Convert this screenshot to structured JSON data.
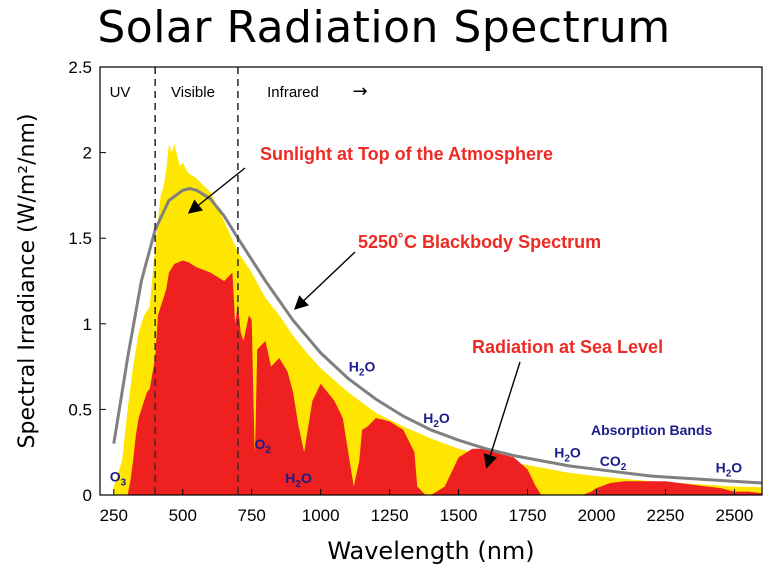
{
  "chart_data": {
    "type": "area",
    "title": "Solar Radiation Spectrum",
    "xlabel": "Wavelength (nm)",
    "ylabel": "Spectral Irradiance (W/m²/nm)",
    "xlim": [
      200,
      2600
    ],
    "ylim": [
      0,
      2.5
    ],
    "x_ticks": [
      250,
      500,
      750,
      1000,
      1250,
      1500,
      1750,
      2000,
      2250,
      2500
    ],
    "y_ticks": [
      0,
      0.5,
      1,
      1.5,
      2,
      2.5
    ],
    "y_tick_labels": [
      "0",
      "0.5",
      "1",
      "1.5",
      "2",
      "2.5"
    ],
    "grid": false,
    "regions": [
      {
        "label": "UV",
        "x_end": 400
      },
      {
        "label": "Visible",
        "x_end": 700
      },
      {
        "label": "Infrared",
        "arrow": "→"
      }
    ],
    "series": [
      {
        "name": "Sunlight at Top of the Atmosphere",
        "color": "#ffe600",
        "x": [
          250,
          280,
          300,
          320,
          340,
          360,
          380,
          400,
          410,
          420,
          430,
          440,
          450,
          460,
          470,
          480,
          490,
          500,
          520,
          550,
          580,
          600,
          650,
          700,
          750,
          800,
          850,
          900,
          950,
          1000,
          1100,
          1200,
          1300,
          1400,
          1500,
          1600,
          1700,
          1800,
          1900,
          2000,
          2100,
          2200,
          2300,
          2400,
          2500,
          2600
        ],
        "y": [
          0.05,
          0.2,
          0.5,
          0.75,
          0.95,
          1.05,
          1.1,
          1.45,
          1.6,
          1.75,
          1.8,
          1.9,
          2.05,
          2.0,
          2.05,
          1.98,
          1.92,
          1.94,
          1.88,
          1.85,
          1.8,
          1.77,
          1.6,
          1.42,
          1.3,
          1.15,
          1.05,
          0.93,
          0.83,
          0.74,
          0.6,
          0.48,
          0.4,
          0.33,
          0.27,
          0.23,
          0.19,
          0.16,
          0.13,
          0.11,
          0.095,
          0.08,
          0.07,
          0.06,
          0.05,
          0.045
        ]
      },
      {
        "name": "5250°C Blackbody Spectrum",
        "color": "#808080",
        "x": [
          250,
          300,
          350,
          400,
          450,
          500,
          525,
          550,
          600,
          650,
          700,
          800,
          900,
          1000,
          1100,
          1200,
          1300,
          1400,
          1500,
          1600,
          1700,
          1800,
          1900,
          2000,
          2200,
          2400,
          2600
        ],
        "y": [
          0.3,
          0.8,
          1.25,
          1.55,
          1.72,
          1.78,
          1.79,
          1.78,
          1.73,
          1.63,
          1.5,
          1.25,
          1.02,
          0.83,
          0.68,
          0.56,
          0.46,
          0.38,
          0.32,
          0.27,
          0.23,
          0.2,
          0.17,
          0.15,
          0.11,
          0.09,
          0.07
        ]
      },
      {
        "name": "Radiation at Sea Level",
        "color": "#ee2020",
        "x": [
          300,
          310,
          320,
          330,
          340,
          350,
          360,
          370,
          380,
          400,
          410,
          420,
          430,
          440,
          450,
          470,
          500,
          520,
          550,
          600,
          650,
          680,
          690,
          700,
          710,
          720,
          740,
          750,
          760,
          762,
          770,
          800,
          820,
          850,
          880,
          900,
          920,
          940,
          950,
          970,
          1000,
          1050,
          1080,
          1100,
          1120,
          1140,
          1150,
          1170,
          1200,
          1250,
          1300,
          1340,
          1350,
          1380,
          1400,
          1450,
          1500,
          1550,
          1600,
          1650,
          1700,
          1750,
          1780,
          1800,
          1850,
          1900,
          1950,
          1980,
          2000,
          2050,
          2100,
          2150,
          2200,
          2250,
          2300,
          2350,
          2400,
          2450,
          2500,
          2550,
          2600
        ],
        "y": [
          0.0,
          0.08,
          0.2,
          0.35,
          0.45,
          0.5,
          0.55,
          0.6,
          0.62,
          0.8,
          1.05,
          1.1,
          1.15,
          1.2,
          1.3,
          1.35,
          1.37,
          1.36,
          1.33,
          1.3,
          1.25,
          1.3,
          1.0,
          1.12,
          0.95,
          0.9,
          1.05,
          1.02,
          0.3,
          0.25,
          0.85,
          0.9,
          0.75,
          0.8,
          0.72,
          0.6,
          0.4,
          0.25,
          0.35,
          0.55,
          0.65,
          0.55,
          0.45,
          0.25,
          0.05,
          0.2,
          0.38,
          0.4,
          0.45,
          0.43,
          0.38,
          0.25,
          0.05,
          0.0,
          0.0,
          0.05,
          0.22,
          0.27,
          0.27,
          0.24,
          0.22,
          0.15,
          0.05,
          0.0,
          0.0,
          0.0,
          0.0,
          0.02,
          0.04,
          0.07,
          0.08,
          0.08,
          0.08,
          0.08,
          0.07,
          0.06,
          0.05,
          0.04,
          0.02,
          0.02,
          0.01
        ]
      }
    ],
    "annotations": [
      {
        "text": "Sunlight at Top of the Atmosphere",
        "color": "#ee2a24"
      },
      {
        "text": "5250˚C Blackbody Spectrum",
        "color": "#ee2a24"
      },
      {
        "text": "Radiation at Sea Level",
        "color": "#ee2a24"
      }
    ],
    "absorption_labels": [
      {
        "text": "O",
        "sub": "3",
        "x": 265,
        "y": 0.08
      },
      {
        "text": "O",
        "sub": "2",
        "x": 790,
        "y": 0.27
      },
      {
        "text": "H",
        "sub": "2",
        "post": "O",
        "x": 920,
        "y": 0.07
      },
      {
        "text": "H",
        "sub": "2",
        "post": "O",
        "x": 1150,
        "y": 0.72
      },
      {
        "text": "H",
        "sub": "2",
        "post": "O",
        "x": 1420,
        "y": 0.42
      },
      {
        "text": "H",
        "sub": "2",
        "post": "O",
        "x": 1895,
        "y": 0.22
      },
      {
        "text": "CO",
        "sub": "2",
        "x": 2060,
        "y": 0.17
      },
      {
        "text": "H",
        "sub": "2",
        "post": "O",
        "x": 2480,
        "y": 0.13
      },
      {
        "text": "Absorption Bands",
        "x": 2200,
        "y": 0.35
      }
    ]
  }
}
